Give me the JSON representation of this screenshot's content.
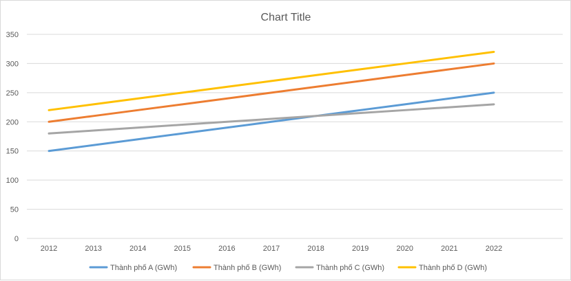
{
  "chart_data": {
    "type": "line",
    "title": "Chart Title",
    "xlabel": "",
    "ylabel": "",
    "categories": [
      "2012",
      "2013",
      "2014",
      "2015",
      "2016",
      "2017",
      "2018",
      "2019",
      "2020",
      "2021",
      "2022"
    ],
    "ylim": [
      0,
      350
    ],
    "yticks": [
      0,
      50,
      100,
      150,
      200,
      250,
      300,
      350
    ],
    "grid": true,
    "legend_position": "bottom",
    "series": [
      {
        "name": "Thành phố A (GWh)",
        "color": "#5b9bd5",
        "values": [
          150,
          160,
          170,
          180,
          190,
          200,
          210,
          220,
          230,
          240,
          250
        ]
      },
      {
        "name": "Thành phố B (GWh)",
        "color": "#ed7d31",
        "values": [
          200,
          210,
          220,
          230,
          240,
          250,
          260,
          270,
          280,
          290,
          300
        ]
      },
      {
        "name": "Thành phố C (GWh)",
        "color": "#a5a5a5",
        "values": [
          180,
          185,
          190,
          195,
          200,
          205,
          210,
          215,
          220,
          225,
          230
        ]
      },
      {
        "name": "Thành phố D (GWh)",
        "color": "#ffc000",
        "values": [
          220,
          230,
          240,
          250,
          260,
          270,
          280,
          290,
          300,
          310,
          320
        ]
      }
    ]
  }
}
